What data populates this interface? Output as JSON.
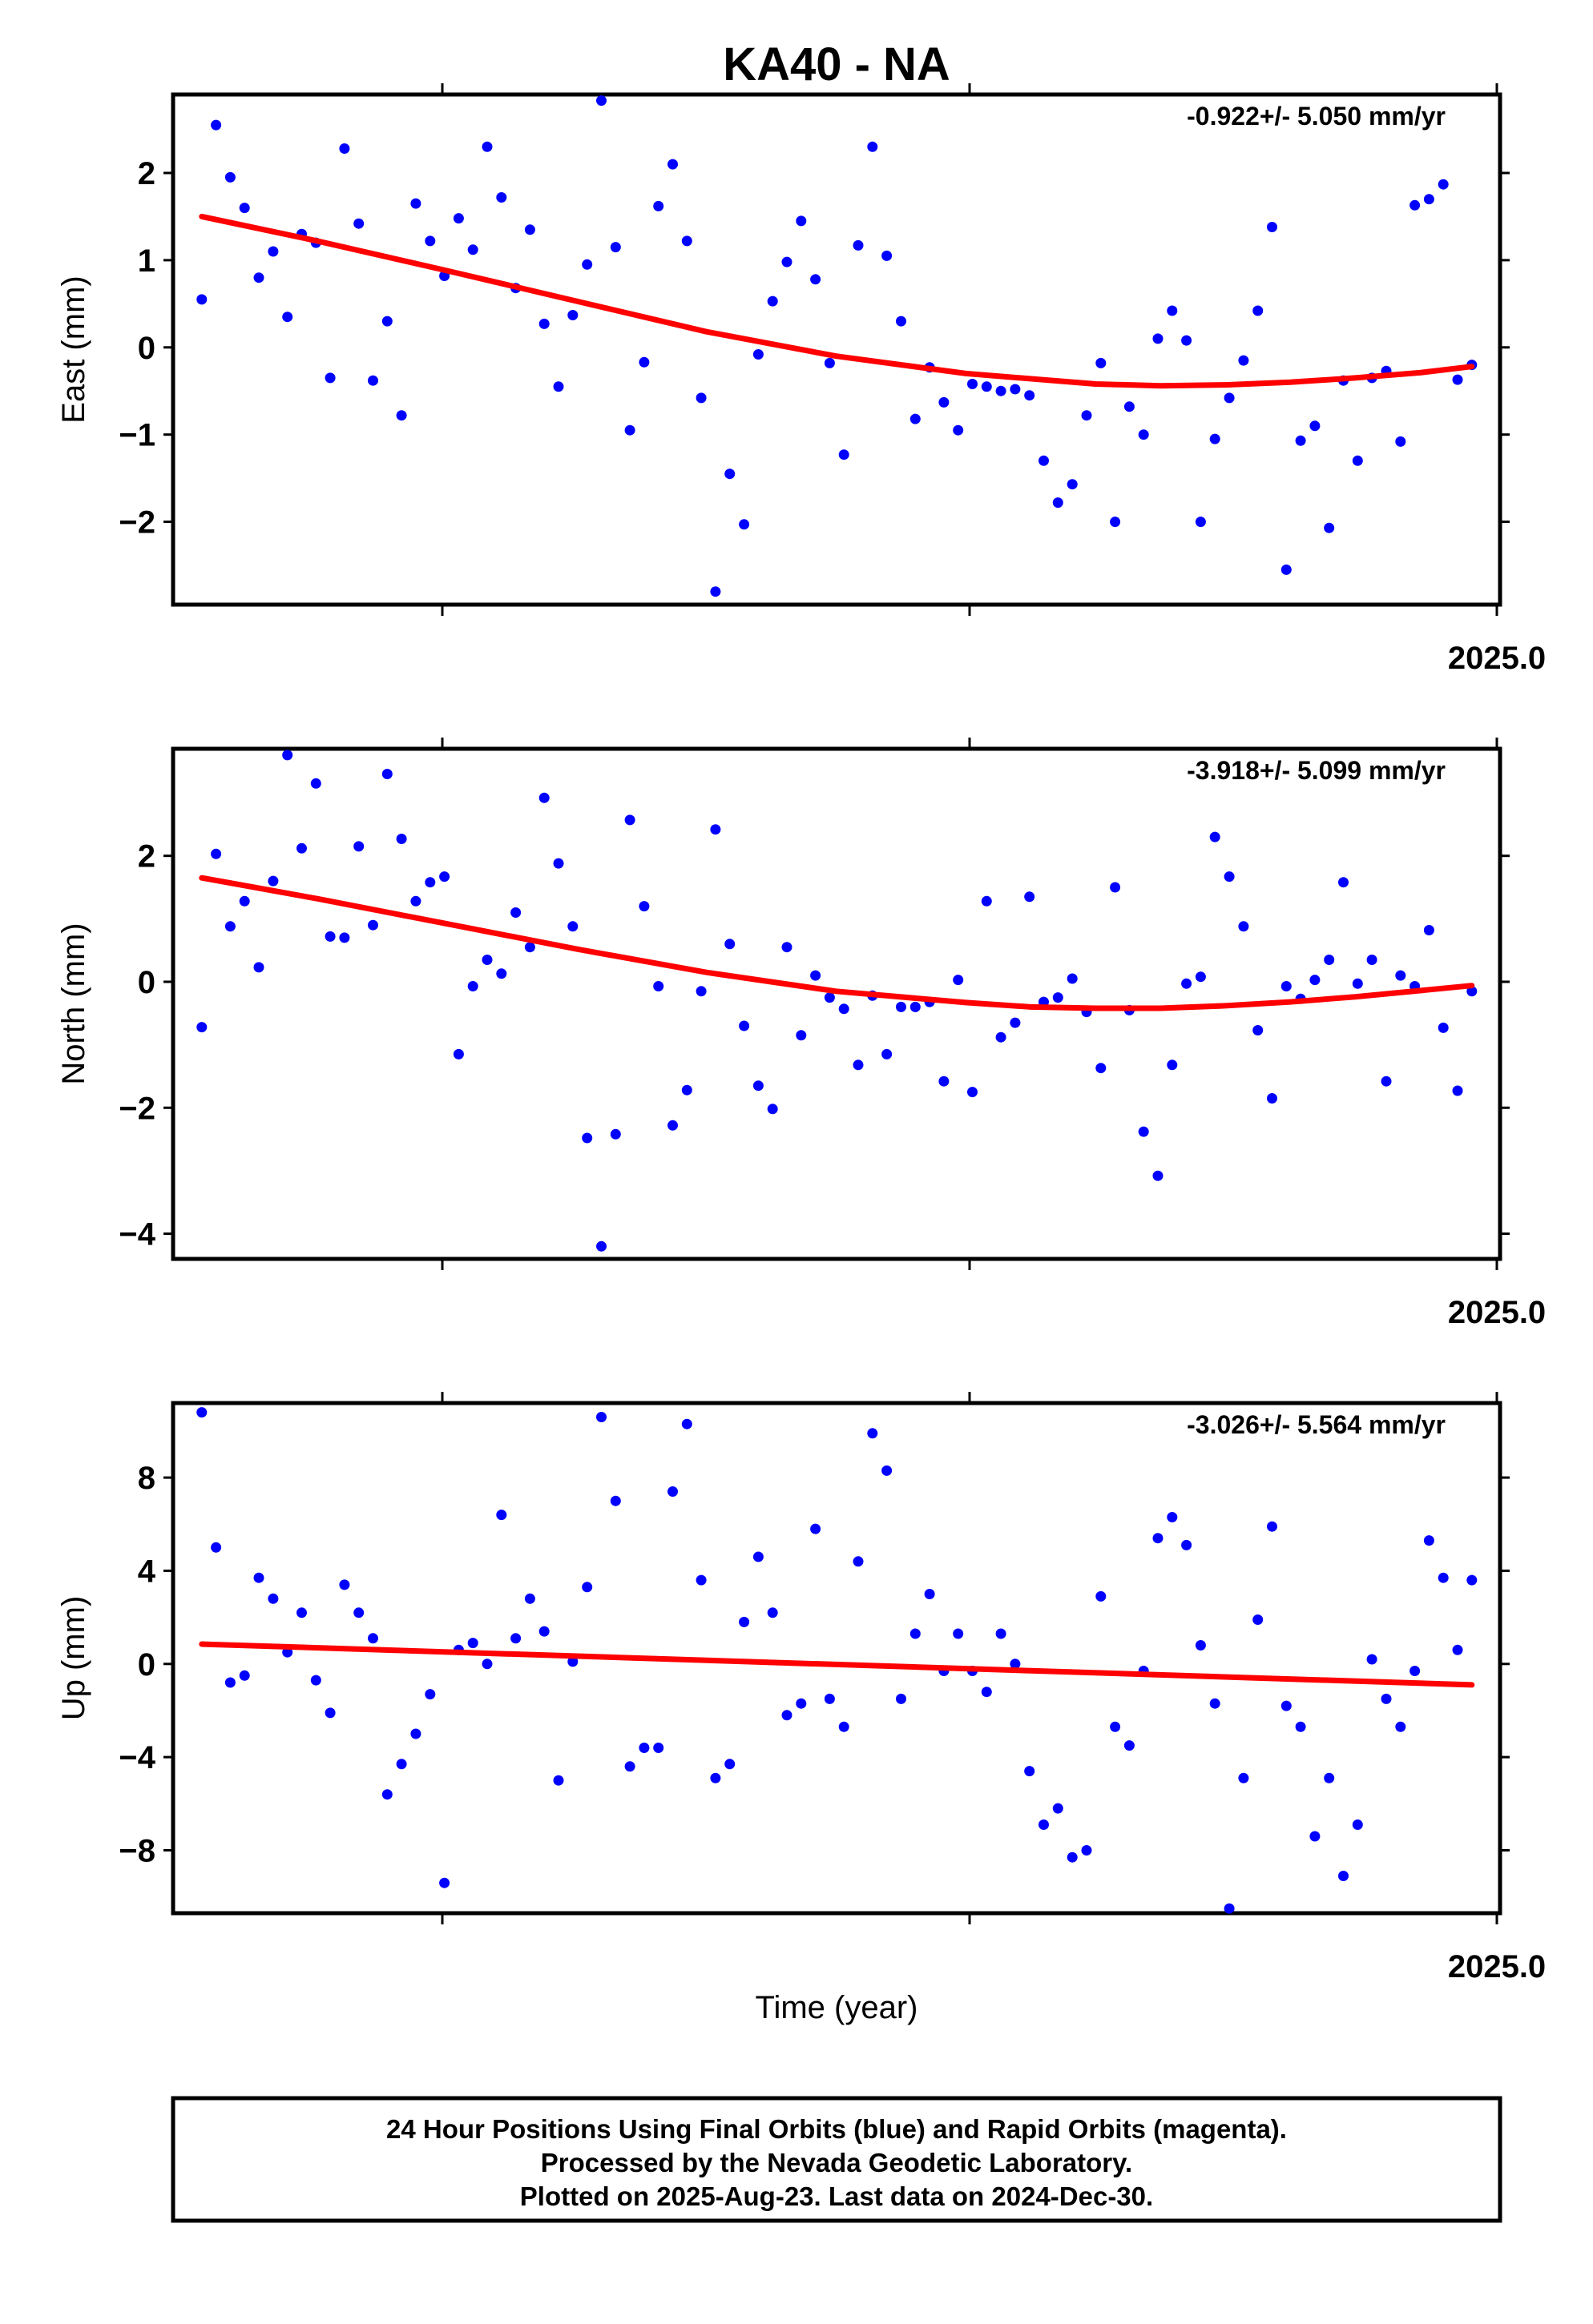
{
  "chart_data": {
    "title": "KA40 - NA",
    "xlabel": "Time (year)",
    "x_axis_label": "2025.0",
    "colors": {
      "final_orbits": "#0000ff",
      "fit": "#ff0000",
      "frame": "#000000"
    },
    "panels": [
      {
        "type": "scatter",
        "ylabel": "East (mm)",
        "rate": "-0.922+/- 5.050 mm/yr",
        "ylim": [
          -2.95,
          2.9
        ],
        "yticks": [
          2,
          1,
          0,
          -1,
          -2
        ],
        "ytick_labels": [
          "2",
          "1",
          "0",
          "−1",
          "−2"
        ],
        "xlim": [
          0,
          100
        ],
        "points": [
          [
            1.1,
            0.55
          ],
          [
            2.2,
            2.55
          ],
          [
            3.3,
            1.95
          ],
          [
            4.4,
            1.6
          ],
          [
            5.5,
            0.8
          ],
          [
            6.6,
            1.1
          ],
          [
            7.7,
            0.35
          ],
          [
            8.8,
            1.3
          ],
          [
            9.9,
            1.2
          ],
          [
            11,
            -0.35
          ],
          [
            12.1,
            2.28
          ],
          [
            13.2,
            1.42
          ],
          [
            14.3,
            -0.38
          ],
          [
            15.4,
            0.3
          ],
          [
            16.5,
            -0.78
          ],
          [
            17.6,
            1.65
          ],
          [
            18.7,
            1.22
          ],
          [
            19.8,
            0.82
          ],
          [
            20.9,
            1.48
          ],
          [
            22,
            1.12
          ],
          [
            23.1,
            2.3
          ],
          [
            24.2,
            1.72
          ],
          [
            25.3,
            0.68
          ],
          [
            26.4,
            1.35
          ],
          [
            27.5,
            0.27
          ],
          [
            28.6,
            -0.45
          ],
          [
            29.7,
            0.37
          ],
          [
            30.8,
            0.95
          ],
          [
            31.9,
            2.83
          ],
          [
            33,
            1.15
          ],
          [
            34.1,
            -0.95
          ],
          [
            35.2,
            -0.17
          ],
          [
            36.3,
            1.62
          ],
          [
            37.4,
            2.1
          ],
          [
            38.5,
            1.22
          ],
          [
            39.6,
            -0.58
          ],
          [
            40.7,
            -2.8
          ],
          [
            41.8,
            -1.45
          ],
          [
            42.9,
            -2.03
          ],
          [
            44,
            -0.08
          ],
          [
            45.1,
            0.53
          ],
          [
            46.2,
            0.98
          ],
          [
            47.3,
            1.45
          ],
          [
            48.4,
            0.78
          ],
          [
            49.5,
            -0.18
          ],
          [
            50.6,
            -1.23
          ],
          [
            51.7,
            1.17
          ],
          [
            52.8,
            2.3
          ],
          [
            53.9,
            1.05
          ],
          [
            55,
            0.3
          ],
          [
            56.1,
            -0.82
          ],
          [
            57.2,
            -0.23
          ],
          [
            58.3,
            -0.63
          ],
          [
            59.4,
            -0.95
          ],
          [
            60.5,
            -0.42
          ],
          [
            61.6,
            -0.45
          ],
          [
            62.7,
            -0.5
          ],
          [
            63.8,
            -0.48
          ],
          [
            64.9,
            -0.55
          ],
          [
            66,
            -1.3
          ],
          [
            67.1,
            -1.78
          ],
          [
            68.2,
            -1.57
          ],
          [
            69.3,
            -0.78
          ],
          [
            70.4,
            -0.18
          ],
          [
            71.5,
            -2.0
          ],
          [
            72.6,
            -0.68
          ],
          [
            73.7,
            -1.0
          ],
          [
            74.8,
            0.1
          ],
          [
            75.9,
            0.42
          ],
          [
            77,
            0.08
          ],
          [
            78.1,
            -2.0
          ],
          [
            79.2,
            -1.05
          ],
          [
            80.3,
            -0.58
          ],
          [
            81.4,
            -0.15
          ],
          [
            82.5,
            0.42
          ],
          [
            83.6,
            1.38
          ],
          [
            84.7,
            -2.55
          ],
          [
            85.8,
            -1.07
          ],
          [
            86.9,
            -0.9
          ],
          [
            88,
            -2.07
          ],
          [
            89.1,
            -0.38
          ],
          [
            90.2,
            -1.3
          ],
          [
            91.3,
            -0.35
          ],
          [
            92.4,
            -0.27
          ],
          [
            93.5,
            -1.08
          ],
          [
            94.6,
            1.63
          ],
          [
            95.7,
            1.7
          ],
          [
            96.8,
            1.87
          ],
          [
            97.9,
            -0.37
          ],
          [
            99,
            -0.2
          ]
        ],
        "fit": [
          [
            1.1,
            1.5
          ],
          [
            10,
            1.22
          ],
          [
            20,
            0.88
          ],
          [
            30,
            0.53
          ],
          [
            40,
            0.18
          ],
          [
            50,
            -0.1
          ],
          [
            60,
            -0.3
          ],
          [
            70,
            -0.42
          ],
          [
            75,
            -0.44
          ],
          [
            80,
            -0.43
          ],
          [
            85,
            -0.4
          ],
          [
            90,
            -0.35
          ],
          [
            95,
            -0.29
          ],
          [
            99,
            -0.22
          ]
        ]
      },
      {
        "type": "scatter",
        "ylabel": "North (mm)",
        "rate": "-3.918+/- 5.099 mm/yr",
        "ylim": [
          -4.4,
          3.7
        ],
        "yticks": [
          2,
          0,
          -2,
          -4
        ],
        "ytick_labels": [
          "2",
          "0",
          "−2",
          "−4"
        ],
        "xlim": [
          0,
          100
        ],
        "points": [
          [
            1.1,
            -0.72
          ],
          [
            2.2,
            2.03
          ],
          [
            3.3,
            0.88
          ],
          [
            4.4,
            1.28
          ],
          [
            5.5,
            0.23
          ],
          [
            6.6,
            1.6
          ],
          [
            7.7,
            3.6
          ],
          [
            8.8,
            2.12
          ],
          [
            9.9,
            3.15
          ],
          [
            11,
            0.72
          ],
          [
            12.1,
            0.7
          ],
          [
            13.2,
            2.15
          ],
          [
            14.3,
            0.9
          ],
          [
            15.4,
            3.3
          ],
          [
            16.5,
            2.27
          ],
          [
            17.6,
            1.28
          ],
          [
            18.7,
            1.58
          ],
          [
            19.8,
            1.67
          ],
          [
            20.9,
            -1.15
          ],
          [
            22,
            -0.07
          ],
          [
            23.1,
            0.35
          ],
          [
            24.2,
            0.13
          ],
          [
            25.3,
            1.1
          ],
          [
            26.4,
            0.55
          ],
          [
            27.5,
            2.92
          ],
          [
            28.6,
            1.88
          ],
          [
            29.7,
            0.88
          ],
          [
            30.8,
            -2.48
          ],
          [
            31.9,
            -4.2
          ],
          [
            33,
            -2.42
          ],
          [
            34.1,
            2.57
          ],
          [
            35.2,
            1.2
          ],
          [
            36.3,
            -0.07
          ],
          [
            37.4,
            -2.28
          ],
          [
            38.5,
            -1.72
          ],
          [
            39.6,
            -0.15
          ],
          [
            40.7,
            2.42
          ],
          [
            41.8,
            0.6
          ],
          [
            42.9,
            -0.7
          ],
          [
            44,
            -1.65
          ],
          [
            45.1,
            -2.02
          ],
          [
            46.2,
            0.55
          ],
          [
            47.3,
            -0.85
          ],
          [
            48.4,
            0.1
          ],
          [
            49.5,
            -0.25
          ],
          [
            50.6,
            -0.43
          ],
          [
            51.7,
            -1.32
          ],
          [
            52.8,
            -0.22
          ],
          [
            53.9,
            -1.15
          ],
          [
            55,
            -0.4
          ],
          [
            56.1,
            -0.4
          ],
          [
            57.2,
            -0.32
          ],
          [
            58.3,
            -1.58
          ],
          [
            59.4,
            0.03
          ],
          [
            60.5,
            -1.75
          ],
          [
            61.6,
            1.28
          ],
          [
            62.7,
            -0.88
          ],
          [
            63.8,
            -0.65
          ],
          [
            64.9,
            1.35
          ],
          [
            66,
            -0.32
          ],
          [
            67.1,
            -0.25
          ],
          [
            68.2,
            0.05
          ],
          [
            69.3,
            -0.48
          ],
          [
            70.4,
            -1.37
          ],
          [
            71.5,
            1.5
          ],
          [
            72.6,
            -0.45
          ],
          [
            73.7,
            -2.38
          ],
          [
            74.8,
            -3.08
          ],
          [
            75.9,
            -1.32
          ],
          [
            77,
            -0.03
          ],
          [
            78.1,
            0.08
          ],
          [
            79.2,
            2.3
          ],
          [
            80.3,
            1.67
          ],
          [
            81.4,
            0.88
          ],
          [
            82.5,
            -0.77
          ],
          [
            83.6,
            -1.85
          ],
          [
            84.7,
            -0.07
          ],
          [
            85.8,
            -0.27
          ],
          [
            86.9,
            0.03
          ],
          [
            88,
            0.35
          ],
          [
            89.1,
            1.58
          ],
          [
            90.2,
            -0.03
          ],
          [
            91.3,
            0.35
          ],
          [
            92.4,
            -1.58
          ],
          [
            93.5,
            0.1
          ],
          [
            94.6,
            -0.07
          ],
          [
            95.7,
            0.82
          ],
          [
            96.8,
            -0.73
          ],
          [
            97.9,
            -1.73
          ],
          [
            99,
            -0.15
          ]
        ],
        "fit": [
          [
            1.1,
            1.65
          ],
          [
            10,
            1.32
          ],
          [
            20,
            0.92
          ],
          [
            30,
            0.52
          ],
          [
            40,
            0.15
          ],
          [
            50,
            -0.15
          ],
          [
            60,
            -0.33
          ],
          [
            65,
            -0.4
          ],
          [
            70,
            -0.42
          ],
          [
            75,
            -0.42
          ],
          [
            80,
            -0.38
          ],
          [
            85,
            -0.32
          ],
          [
            90,
            -0.24
          ],
          [
            95,
            -0.14
          ],
          [
            99,
            -0.06
          ]
        ]
      },
      {
        "type": "scatter",
        "ylabel": "Up (mm)",
        "rate": "-3.026+/- 5.564 mm/yr",
        "ylim": [
          -10.7,
          11.2
        ],
        "yticks": [
          8,
          4,
          0,
          -4,
          -8
        ],
        "ytick_labels": [
          "8",
          "4",
          "0",
          "−4",
          "−8"
        ],
        "xlim": [
          0,
          100
        ],
        "points": [
          [
            1.1,
            10.8
          ],
          [
            2.2,
            5.0
          ],
          [
            3.3,
            -0.8
          ],
          [
            4.4,
            -0.5
          ],
          [
            5.5,
            3.7
          ],
          [
            6.6,
            2.8
          ],
          [
            7.7,
            0.5
          ],
          [
            8.8,
            2.2
          ],
          [
            9.9,
            -0.7
          ],
          [
            11,
            -2.1
          ],
          [
            12.1,
            3.4
          ],
          [
            13.2,
            2.2
          ],
          [
            14.3,
            1.1
          ],
          [
            15.4,
            -5.6
          ],
          [
            16.5,
            -4.3
          ],
          [
            17.6,
            -3.0
          ],
          [
            18.7,
            -1.3
          ],
          [
            19.8,
            -9.4
          ],
          [
            20.9,
            0.6
          ],
          [
            22,
            0.9
          ],
          [
            23.1,
            0.0
          ],
          [
            24.2,
            6.4
          ],
          [
            25.3,
            1.1
          ],
          [
            26.4,
            2.8
          ],
          [
            27.5,
            1.4
          ],
          [
            28.6,
            -5.0
          ],
          [
            29.7,
            0.1
          ],
          [
            30.8,
            3.3
          ],
          [
            31.9,
            10.6
          ],
          [
            33,
            7.0
          ],
          [
            34.1,
            -4.4
          ],
          [
            35.2,
            -3.6
          ],
          [
            36.3,
            -3.6
          ],
          [
            37.4,
            7.4
          ],
          [
            38.5,
            10.3
          ],
          [
            39.6,
            3.6
          ],
          [
            40.7,
            -4.9
          ],
          [
            41.8,
            -4.3
          ],
          [
            42.9,
            1.8
          ],
          [
            44,
            4.6
          ],
          [
            45.1,
            2.2
          ],
          [
            46.2,
            -2.2
          ],
          [
            47.3,
            -1.7
          ],
          [
            48.4,
            5.8
          ],
          [
            49.5,
            -1.5
          ],
          [
            50.6,
            -2.7
          ],
          [
            51.7,
            4.4
          ],
          [
            52.8,
            9.9
          ],
          [
            53.9,
            8.3
          ],
          [
            55,
            -1.5
          ],
          [
            56.1,
            1.3
          ],
          [
            57.2,
            3.0
          ],
          [
            58.3,
            -0.3
          ],
          [
            59.4,
            1.3
          ],
          [
            60.5,
            -0.3
          ],
          [
            61.6,
            -1.2
          ],
          [
            62.7,
            1.3
          ],
          [
            63.8,
            0.0
          ],
          [
            64.9,
            -4.6
          ],
          [
            66,
            -6.9
          ],
          [
            67.1,
            -6.2
          ],
          [
            68.2,
            -8.3
          ],
          [
            69.3,
            -8.0
          ],
          [
            70.4,
            2.9
          ],
          [
            71.5,
            -2.7
          ],
          [
            72.6,
            -3.5
          ],
          [
            73.7,
            -0.3
          ],
          [
            74.8,
            5.4
          ],
          [
            75.9,
            6.3
          ],
          [
            77,
            5.1
          ],
          [
            78.1,
            0.8
          ],
          [
            79.2,
            -1.7
          ],
          [
            80.3,
            -10.5
          ],
          [
            81.4,
            -4.9
          ],
          [
            82.5,
            1.9
          ],
          [
            83.6,
            5.9
          ],
          [
            84.7,
            -1.8
          ],
          [
            85.8,
            -2.7
          ],
          [
            86.9,
            -7.4
          ],
          [
            88,
            -4.9
          ],
          [
            89.1,
            -9.1
          ],
          [
            90.2,
            -6.9
          ],
          [
            91.3,
            0.2
          ],
          [
            92.4,
            -1.5
          ],
          [
            93.5,
            -2.7
          ],
          [
            94.6,
            -0.3
          ],
          [
            95.7,
            5.3
          ],
          [
            96.8,
            3.7
          ],
          [
            97.9,
            0.6
          ],
          [
            99,
            3.6
          ]
        ],
        "fit": [
          [
            1.1,
            0.85
          ],
          [
            99,
            -0.9
          ]
        ]
      }
    ],
    "footer": [
      "24 Hour Positions Using Final Orbits (blue) and Rapid Orbits (magenta).",
      "Processed by the Nevada Geodetic Laboratory.",
      "Plotted on 2025-Aug-23. Last data on 2024-Dec-30."
    ]
  }
}
